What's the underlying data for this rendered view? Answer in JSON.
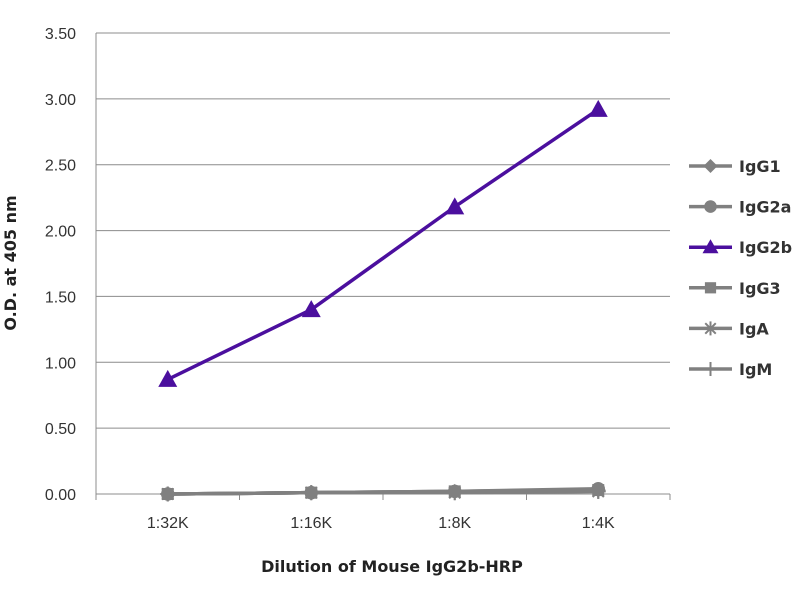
{
  "chart_data": {
    "type": "line",
    "title": "",
    "xlabel": "Dilution of Mouse IgG2b-HRP",
    "ylabel": "O.D. at 405 nm",
    "categories": [
      "1:32K",
      "1:16K",
      "1:8K",
      "1:4K"
    ],
    "ylim": [
      0,
      3.5
    ],
    "yticks": [
      "0.00",
      "0.50",
      "1.00",
      "1.50",
      "2.00",
      "2.50",
      "3.00",
      "3.50"
    ],
    "grid": "horizontal",
    "legend_position": "right",
    "series": [
      {
        "name": "IgG1",
        "marker": "diamond",
        "color": "#808080",
        "values": [
          0.0,
          0.01,
          0.02,
          0.03
        ]
      },
      {
        "name": "IgG2a",
        "marker": "circle",
        "color": "#808080",
        "values": [
          0.0,
          0.01,
          0.02,
          0.04
        ]
      },
      {
        "name": "IgG2b",
        "marker": "triangle",
        "color": "#4b0f9e",
        "values": [
          0.87,
          1.4,
          2.18,
          2.92
        ]
      },
      {
        "name": "IgG3",
        "marker": "square",
        "color": "#808080",
        "values": [
          0.0,
          0.01,
          0.02,
          0.03
        ]
      },
      {
        "name": "IgA",
        "marker": "star",
        "color": "#808080",
        "values": [
          0.0,
          0.01,
          0.01,
          0.02
        ]
      },
      {
        "name": "IgM",
        "marker": "plus",
        "color": "#808080",
        "values": [
          0.0,
          0.01,
          0.01,
          0.02
        ]
      }
    ]
  }
}
